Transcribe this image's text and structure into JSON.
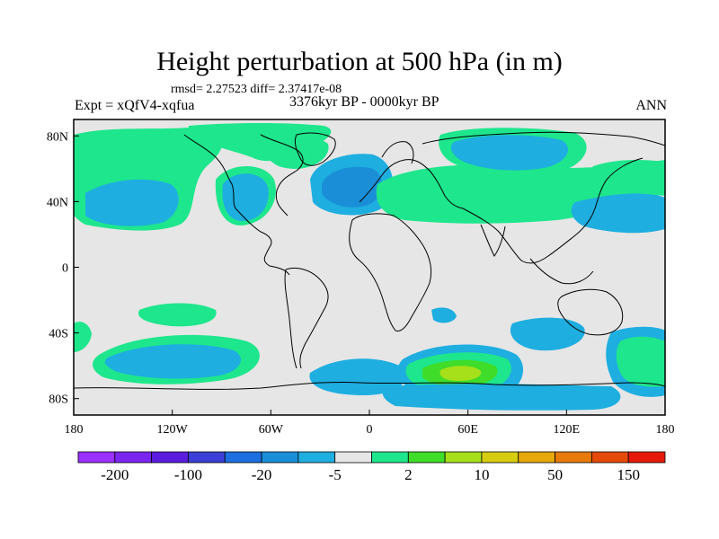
{
  "title": "Height perturbation at 500 hPa (in m)",
  "stats_text": "rmsd= 2.27523 diff= 2.37417e-08",
  "left_label": "Expt = xQfV4-xqfua",
  "center_label": "3376kyr BP - 0000kyr BP",
  "right_label": "ANN",
  "y_ticks": [
    {
      "label": "80N",
      "lat": 80
    },
    {
      "label": "40N",
      "lat": 40
    },
    {
      "label": "0",
      "lat": 0
    },
    {
      "label": "40S",
      "lat": -40
    },
    {
      "label": "80S",
      "lat": -80
    }
  ],
  "x_ticks": [
    {
      "label": "180",
      "lon": -180
    },
    {
      "label": "120W",
      "lon": -120
    },
    {
      "label": "60W",
      "lon": -60
    },
    {
      "label": "0",
      "lon": 0
    },
    {
      "label": "60E",
      "lon": 60
    },
    {
      "label": "120E",
      "lon": 120
    },
    {
      "label": "180",
      "lon": 180
    }
  ],
  "colorbar": {
    "colors": [
      "#9b30ff",
      "#7b26f0",
      "#5a1de0",
      "#3c3fd6",
      "#1c6fe0",
      "#1a8fd8",
      "#1eaee0",
      "#e6e6e6",
      "#1ee68c",
      "#40dc2a",
      "#a6e01a",
      "#d6cc10",
      "#e6a80a",
      "#e67a0a",
      "#e64a0a",
      "#e61a0a"
    ],
    "labels": [
      {
        "text": "-200",
        "index": 1
      },
      {
        "text": "-100",
        "index": 3
      },
      {
        "text": "-20",
        "index": 5
      },
      {
        "text": "-5",
        "index": 7
      },
      {
        "text": "2",
        "index": 9
      },
      {
        "text": "10",
        "index": 11
      },
      {
        "text": "50",
        "index": 13
      },
      {
        "text": "150",
        "index": 15
      }
    ]
  },
  "map_extent": {
    "lon": [
      -180,
      180
    ],
    "lat": [
      -90,
      90
    ]
  },
  "fields": [
    {
      "lon": 150,
      "lat": -55,
      "level": "c-5"
    },
    {
      "lon": -140,
      "lat": -55,
      "level": "c-20"
    },
    {
      "lon": -10,
      "lat": 45,
      "level": "c-20"
    },
    {
      "lon": -70,
      "lat": 45,
      "level": "c-5"
    },
    {
      "lon": 95,
      "lat": 70,
      "level": "c-5"
    },
    {
      "lon": 50,
      "lat": -65,
      "level": "c10"
    },
    {
      "lon": 80,
      "lat": 45,
      "level": "c2"
    }
  ]
}
